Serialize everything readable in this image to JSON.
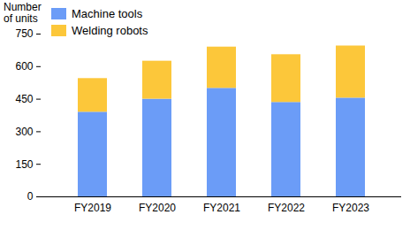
{
  "chart_data": {
    "type": "bar",
    "stacked": true,
    "y_label": "Number of units",
    "categories": [
      "FY2019",
      "FY2020",
      "FY2021",
      "FY2022",
      "FY2023"
    ],
    "series": [
      {
        "name": "Machine tools",
        "color": "#6b9cf7",
        "values": [
          390,
          450,
          500,
          435,
          455
        ]
      },
      {
        "name": "Welding robots",
        "color": "#fcc73a",
        "values": [
          155,
          175,
          190,
          220,
          240
        ]
      }
    ],
    "ylim": [
      0,
      750
    ],
    "yticks": [
      0,
      150,
      300,
      450,
      600,
      750
    ],
    "grid": false,
    "legend": "top-left"
  }
}
